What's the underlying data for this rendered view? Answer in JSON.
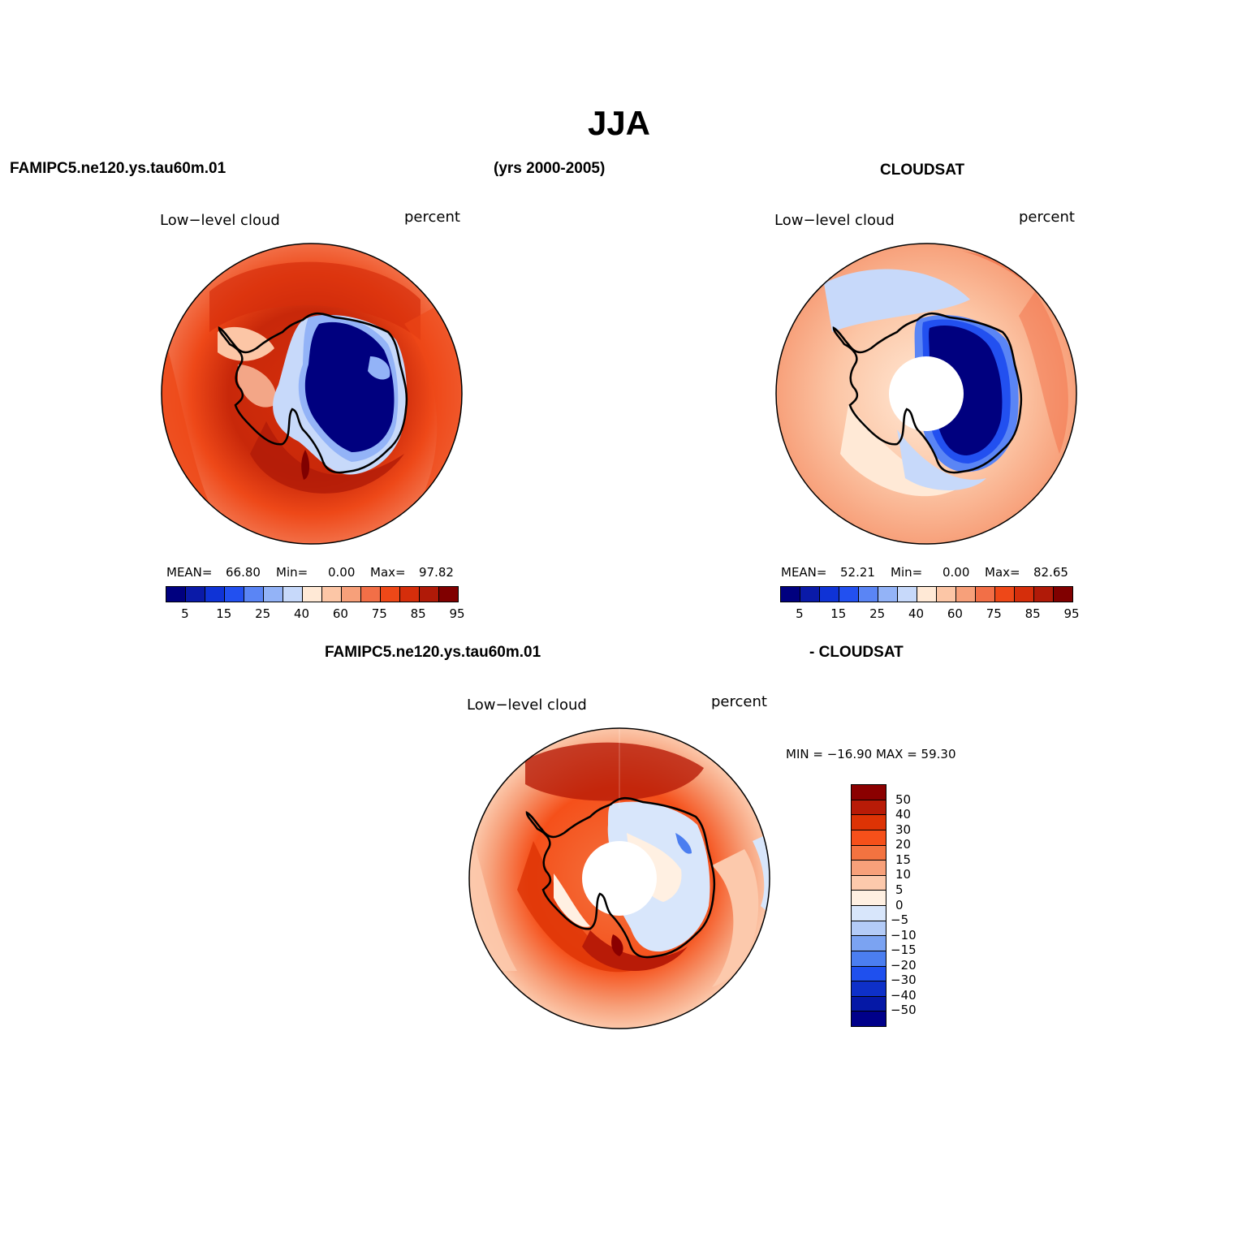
{
  "title": "JJA",
  "header": {
    "left": "FAMIPC5.ne120.ys.tau60m.01",
    "center": "(yrs 2000-2005)",
    "right": "CLOUDSAT",
    "diff_left": "FAMIPC5.ne120.ys.tau60m.01",
    "diff_right": "- CLOUDSAT"
  },
  "panels": [
    {
      "variable": "Low−level cloud",
      "units": "percent",
      "stats": {
        "mean_label": "MEAN=",
        "mean": "66.80",
        "min_label": "Min=",
        "min": "0.00",
        "max_label": "Max=",
        "max": "97.82"
      }
    },
    {
      "variable": "Low−level cloud",
      "units": "percent",
      "stats": {
        "mean_label": "MEAN=",
        "mean": "52.21",
        "min_label": "Min=",
        "min": "0.00",
        "max_label": "Max=",
        "max": "82.65"
      }
    },
    {
      "variable": "Low−level cloud",
      "units": "percent",
      "stats": {
        "text": "MIN = −16.90 MAX =   59.30"
      }
    }
  ],
  "colorbar_main": {
    "colors": [
      "#00007f",
      "#0a1aa8",
      "#0f33d6",
      "#2250f0",
      "#5a85f5",
      "#93b3f7",
      "#c7d9fa",
      "#ffe9d6",
      "#fcc6a6",
      "#f7a07a",
      "#f26f47",
      "#ee4818",
      "#d52e0b",
      "#b01a08",
      "#800000"
    ],
    "ticks": [
      "5",
      "15",
      "25",
      "40",
      "60",
      "75",
      "85",
      "95"
    ]
  },
  "colorbar_diff": {
    "colors": [
      "#8b0000",
      "#b81b07",
      "#dd3305",
      "#f5501a",
      "#f37340",
      "#f7a07a",
      "#fcc9ac",
      "#fff0e2",
      "#d8e6fb",
      "#b3cbf7",
      "#7ba3f2",
      "#4b7ef0",
      "#1f50ee",
      "#0e30c8",
      "#0518a6",
      "#00008a"
    ],
    "ticks": [
      "50",
      "40",
      "30",
      "20",
      "15",
      "10",
      "5",
      "0",
      "−5",
      "−10",
      "−15",
      "−20",
      "−30",
      "−40",
      "−50"
    ]
  }
}
